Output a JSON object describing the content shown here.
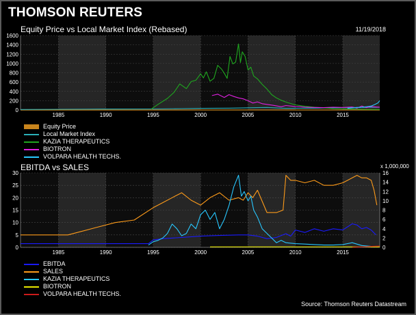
{
  "header": {
    "brand": "THOMSON REUTERS",
    "date": "11/19/2018",
    "source": "Source: Thomson Reuters Datastream"
  },
  "chart_data": [
    {
      "type": "line",
      "title": "Equity Price vs Local Market Index (Rebased)",
      "xlim": [
        1981,
        2018.9
      ],
      "ylim": [
        0,
        1600
      ],
      "yticks": [
        0,
        200,
        400,
        600,
        800,
        1000,
        1200,
        1400,
        1600
      ],
      "xticks": [
        1985,
        1990,
        1995,
        2000,
        2005,
        2010,
        2015
      ],
      "grid": true,
      "legend_position": "bottom-left",
      "series": [
        {
          "name": "Equity Price",
          "style": "area",
          "color": "#c8841c",
          "x": [
            1981,
            1995,
            2000,
            2005,
            2010,
            2015,
            2018.9
          ],
          "y": [
            0,
            0,
            0,
            0,
            0,
            0,
            0
          ]
        },
        {
          "name": "Local Market Index",
          "color": "#2ab0b8",
          "x": [
            1981,
            1985,
            1990,
            1995,
            1998,
            2000,
            2003,
            2007,
            2009,
            2012,
            2015,
            2018.9
          ],
          "y": [
            10,
            15,
            20,
            22,
            30,
            35,
            40,
            55,
            35,
            40,
            50,
            60
          ]
        },
        {
          "name": "KAZIA THERAPEUTICS",
          "color": "#1fa81f",
          "x": [
            1994.8,
            1995.5,
            1996.5,
            1997.2,
            1997.8,
            1998.5,
            1999,
            1999.5,
            2000,
            2000.3,
            2000.6,
            2001,
            2001.4,
            2001.8,
            2002.2,
            2002.5,
            2002.8,
            2003.1,
            2003.4,
            2003.7,
            2004,
            2004.2,
            2004.4,
            2004.7,
            2005,
            2005.3,
            2005.6,
            2006,
            2006.5,
            2007,
            2007.5,
            2008,
            2008.5,
            2009,
            2009.5,
            2010,
            2011,
            2012,
            2013,
            2014,
            2015,
            2016,
            2017,
            2018.9
          ],
          "y": [
            20,
            120,
            250,
            380,
            560,
            460,
            610,
            640,
            780,
            690,
            820,
            620,
            680,
            960,
            880,
            790,
            680,
            1150,
            990,
            1030,
            1420,
            1020,
            1250,
            1150,
            860,
            920,
            730,
            670,
            550,
            450,
            330,
            260,
            210,
            170,
            140,
            110,
            80,
            60,
            45,
            30,
            25,
            20,
            15,
            10
          ]
        },
        {
          "name": "BIOTRON",
          "color": "#e020e0",
          "x": [
            2001.2,
            2001.8,
            2002.5,
            2003,
            2003.5,
            2004,
            2004.5,
            2005,
            2005.5,
            2006,
            2006.5,
            2007,
            2007.5,
            2008,
            2008.5,
            2009,
            2009.5,
            2010,
            2010.5,
            2011,
            2012,
            2013,
            2014,
            2015,
            2016,
            2016.5,
            2017,
            2017.5,
            2018,
            2018.9
          ],
          "y": [
            310,
            340,
            270,
            330,
            290,
            260,
            240,
            200,
            150,
            175,
            135,
            120,
            105,
            90,
            70,
            95,
            85,
            75,
            70,
            60,
            55,
            50,
            60,
            55,
            65,
            40,
            85,
            50,
            75,
            60
          ]
        },
        {
          "name": "VOLPARA HEALTH TECHS.",
          "color": "#28c8ff",
          "x": [
            2015.5,
            2016,
            2016.5,
            2017,
            2017.5,
            2018,
            2018.4,
            2018.7,
            2018.9
          ],
          "y": [
            35,
            45,
            55,
            60,
            70,
            85,
            120,
            150,
            200
          ]
        }
      ]
    },
    {
      "type": "line",
      "title": "EBITDA vs SALES",
      "xlim": [
        1981,
        2018.9
      ],
      "ylim_left": [
        0,
        30
      ],
      "ylim_right": [
        0,
        16
      ],
      "yticks_left": [
        0,
        5,
        10,
        15,
        20,
        25,
        30
      ],
      "yticks_right": [
        0,
        2,
        4,
        6,
        8,
        10,
        12,
        14,
        16
      ],
      "right_axis_unit": "x 1,000,000",
      "xticks": [
        1985,
        1990,
        1995,
        2000,
        2005,
        2010,
        2015
      ],
      "grid": true,
      "legend_position": "bottom-left",
      "series": [
        {
          "name": "EBITDA",
          "color": "#1a1aff",
          "axis": "left",
          "x": [
            1981,
            1986,
            1994.5,
            1995,
            1996,
            1998,
            2000,
            2002,
            2004,
            2005,
            2006,
            2007,
            2008,
            2009,
            2009.5,
            2010,
            2011,
            2012,
            2013,
            2014,
            2015,
            2016,
            2016.5,
            2017,
            2017.5,
            2018,
            2018.5
          ],
          "y": [
            1.5,
            1.5,
            1.5,
            3,
            3.5,
            4,
            4.5,
            4.8,
            5,
            5,
            4.5,
            3.5,
            4,
            5.5,
            4.5,
            7,
            6,
            7.5,
            6.5,
            7.5,
            7,
            9.5,
            9,
            7.5,
            8,
            7,
            5
          ]
        },
        {
          "name": "SALES",
          "color": "#ff9c1a",
          "axis": "left",
          "x": [
            1981,
            1986,
            1987,
            1989,
            1991,
            1993,
            1995,
            1996,
            1997,
            1998,
            1999,
            2000,
            2001,
            2002,
            2003,
            2004,
            2004.5,
            2005,
            2005.5,
            2006,
            2007,
            2008,
            2008.7,
            2009,
            2009.5,
            2010,
            2011,
            2012,
            2013,
            2014,
            2015,
            2016,
            2016.5,
            2017,
            2017.5,
            2018,
            2018.3,
            2018.6
          ],
          "y": [
            5,
            5,
            6,
            8,
            10,
            11,
            16,
            18,
            20,
            22,
            19,
            17,
            20,
            22,
            19,
            20,
            19,
            22,
            20,
            23,
            14,
            14,
            15,
            29,
            27,
            27,
            26,
            27,
            25,
            25,
            26,
            28,
            29,
            28,
            28,
            27,
            23,
            17
          ]
        },
        {
          "name": "KAZIA THERAPEUTICS",
          "color": "#28c8ff",
          "axis": "right",
          "x": [
            1994.5,
            1995,
            1995.5,
            1996,
            1996.5,
            1997,
            1997.5,
            1998,
            1998.5,
            1999,
            1999.5,
            2000,
            2000.5,
            2001,
            2001.5,
            2002,
            2002.5,
            2003,
            2003.5,
            2004,
            2004.3,
            2004.6,
            2005,
            2005.3,
            2005.6,
            2006,
            2006.5,
            2007,
            2007.5,
            2008,
            2008.5,
            2009,
            2010,
            2011,
            2012,
            2013,
            2014,
            2015,
            2016,
            2017,
            2018
          ],
          "y": [
            0.5,
            1.2,
            1.5,
            2,
            3,
            5,
            4,
            2.5,
            3,
            5,
            4,
            7,
            8,
            6,
            7.5,
            4,
            6,
            9,
            13,
            15.5,
            11,
            12,
            10,
            11,
            8,
            6.5,
            4,
            3,
            2,
            1,
            1.5,
            1,
            0.8,
            0.7,
            0.6,
            0.5,
            0.5,
            0.6,
            1,
            0.4,
            0.2
          ]
        },
        {
          "name": "BIOTRON",
          "color": "#e8e800",
          "axis": "right",
          "x": [
            2001,
            2005,
            2010,
            2015,
            2018.9
          ],
          "y": [
            0.1,
            0.1,
            0.1,
            0.1,
            0.1
          ]
        },
        {
          "name": "VOLPARA HEALTH TECHS.",
          "color": "#cc1a1a",
          "axis": "right",
          "x": [
            2016,
            2017,
            2018,
            2018.9
          ],
          "y": [
            0,
            0.1,
            0.2,
            0.3
          ]
        }
      ]
    }
  ]
}
